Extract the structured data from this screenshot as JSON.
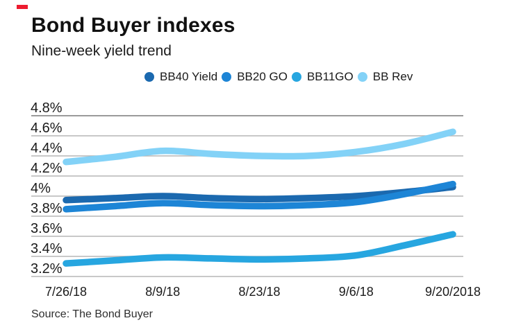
{
  "header": {
    "title": "Bond Buyer indexes",
    "subtitle": "Nine-week yield trend"
  },
  "accent": {
    "brand_dash_color": "#ed1b2f"
  },
  "source_note": "Source: The Bond Buyer",
  "axis_colors": {
    "gridline": "#b5b5b5",
    "gridline_top": "#9a9a9a",
    "tick_text": "#1a1a1a"
  },
  "chart_data": {
    "type": "line",
    "title": "Bond Buyer indexes",
    "subtitle": "Nine-week yield trend",
    "points_per_series": 9,
    "x_tick_labels": [
      "7/26/18",
      "8/9/18",
      "8/23/18",
      "9/6/18",
      "9/20/2018"
    ],
    "x_tick_positions": [
      0,
      2,
      4,
      6,
      8
    ],
    "y_tick_labels": [
      "4.8%",
      "4.6%",
      "4.4%",
      "4.2%",
      "4%",
      "3.8%",
      "3.6%",
      "3.4%",
      "3.2%"
    ],
    "y_ticks": [
      4.8,
      4.6,
      4.4,
      4.2,
      4.0,
      3.8,
      3.6,
      3.4,
      3.2
    ],
    "ylim": [
      3.2,
      4.8
    ],
    "grid": "horizontal",
    "legend_position": "top",
    "series": [
      {
        "name": "BB40 Yield",
        "color": "#1b69af",
        "values": [
          3.96,
          3.98,
          4.0,
          3.98,
          3.97,
          3.98,
          4.0,
          4.04,
          4.09
        ]
      },
      {
        "name": "BB20 GO",
        "color": "#1d85d6",
        "values": [
          3.87,
          3.9,
          3.93,
          3.91,
          3.9,
          3.91,
          3.94,
          4.02,
          4.12
        ]
      },
      {
        "name": "BB11GO",
        "color": "#27a6e0",
        "values": [
          3.33,
          3.36,
          3.39,
          3.38,
          3.37,
          3.38,
          3.41,
          3.51,
          3.62
        ]
      },
      {
        "name": "BB Rev",
        "color": "#83d2f7",
        "values": [
          4.34,
          4.39,
          4.45,
          4.42,
          4.4,
          4.4,
          4.44,
          4.52,
          4.64
        ]
      }
    ],
    "source": "Source: The Bond Buyer"
  }
}
